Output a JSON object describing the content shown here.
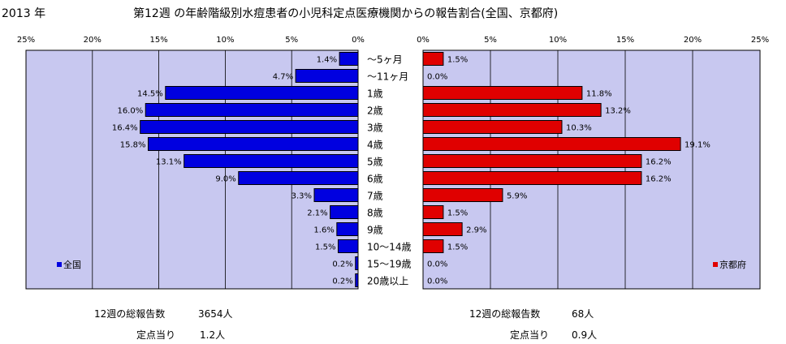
{
  "page": {
    "year": "2013 年",
    "title": "第12週 の年齢階級別水痘患者の小児科定点医療機関からの報告割合(全国、京都府)"
  },
  "colors": {
    "plot_bg": "#C8C8F0",
    "national_bar": "#0000E0",
    "kyoto_bar": "#E00000",
    "grid": "#000000"
  },
  "chart_data": [
    {
      "type": "bar",
      "orientation": "horizontal",
      "direction": "reversed",
      "series_name": "全国",
      "legend_position": "bottom-left",
      "xlim": [
        0,
        25
      ],
      "ticks": [
        "25%",
        "20%",
        "15%",
        "10%",
        "5%",
        "0%"
      ],
      "tick_values": [
        25,
        20,
        15,
        10,
        5,
        0
      ],
      "categories": [
        "～5ヶ月",
        "～11ヶ月",
        "1歳",
        "2歳",
        "3歳",
        "4歳",
        "5歳",
        "6歳",
        "7歳",
        "8歳",
        "9歳",
        "10～14歳",
        "15～19歳",
        "20歳以上"
      ],
      "values": [
        1.4,
        4.7,
        14.5,
        16.0,
        16.4,
        15.8,
        13.1,
        9.0,
        3.3,
        2.1,
        1.6,
        1.5,
        0.2,
        0.2
      ],
      "labels": [
        "1.4%",
        "4.7%",
        "14.5%",
        "16.0%",
        "16.4%",
        "15.8%",
        "13.1%",
        "9.0%",
        "3.3%",
        "2.1%",
        "1.6%",
        "1.5%",
        "0.2%",
        "0.2%"
      ],
      "grid": true
    },
    {
      "type": "bar",
      "orientation": "horizontal",
      "series_name": "京都府",
      "legend_position": "bottom-right",
      "xlim": [
        0,
        25
      ],
      "ticks": [
        "0%",
        "5%",
        "10%",
        "15%",
        "20%",
        "25%"
      ],
      "tick_values": [
        0,
        5,
        10,
        15,
        20,
        25
      ],
      "categories": [
        "～5ヶ月",
        "～11ヶ月",
        "1歳",
        "2歳",
        "3歳",
        "4歳",
        "5歳",
        "6歳",
        "7歳",
        "8歳",
        "9歳",
        "10～14歳",
        "15～19歳",
        "20歳以上"
      ],
      "values": [
        1.5,
        0.0,
        11.8,
        13.2,
        10.3,
        19.1,
        16.2,
        16.2,
        5.9,
        1.5,
        2.9,
        1.5,
        0.0,
        0.0
      ],
      "labels": [
        "1.5%",
        "0.0%",
        "11.8%",
        "13.2%",
        "10.3%",
        "19.1%",
        "16.2%",
        "16.2%",
        "5.9%",
        "1.5%",
        "2.9%",
        "1.5%",
        "0.0%",
        "0.0%"
      ],
      "grid": true
    }
  ],
  "stats": {
    "national": {
      "reports_label": "12週の総報告数",
      "reports_value": "3654人",
      "per_point_label": "定点当り",
      "per_point_value": "1.2人"
    },
    "kyoto": {
      "reports_label": "12週の総報告数",
      "reports_value": "68人",
      "per_point_label": "定点当り",
      "per_point_value": "0.9人"
    }
  }
}
